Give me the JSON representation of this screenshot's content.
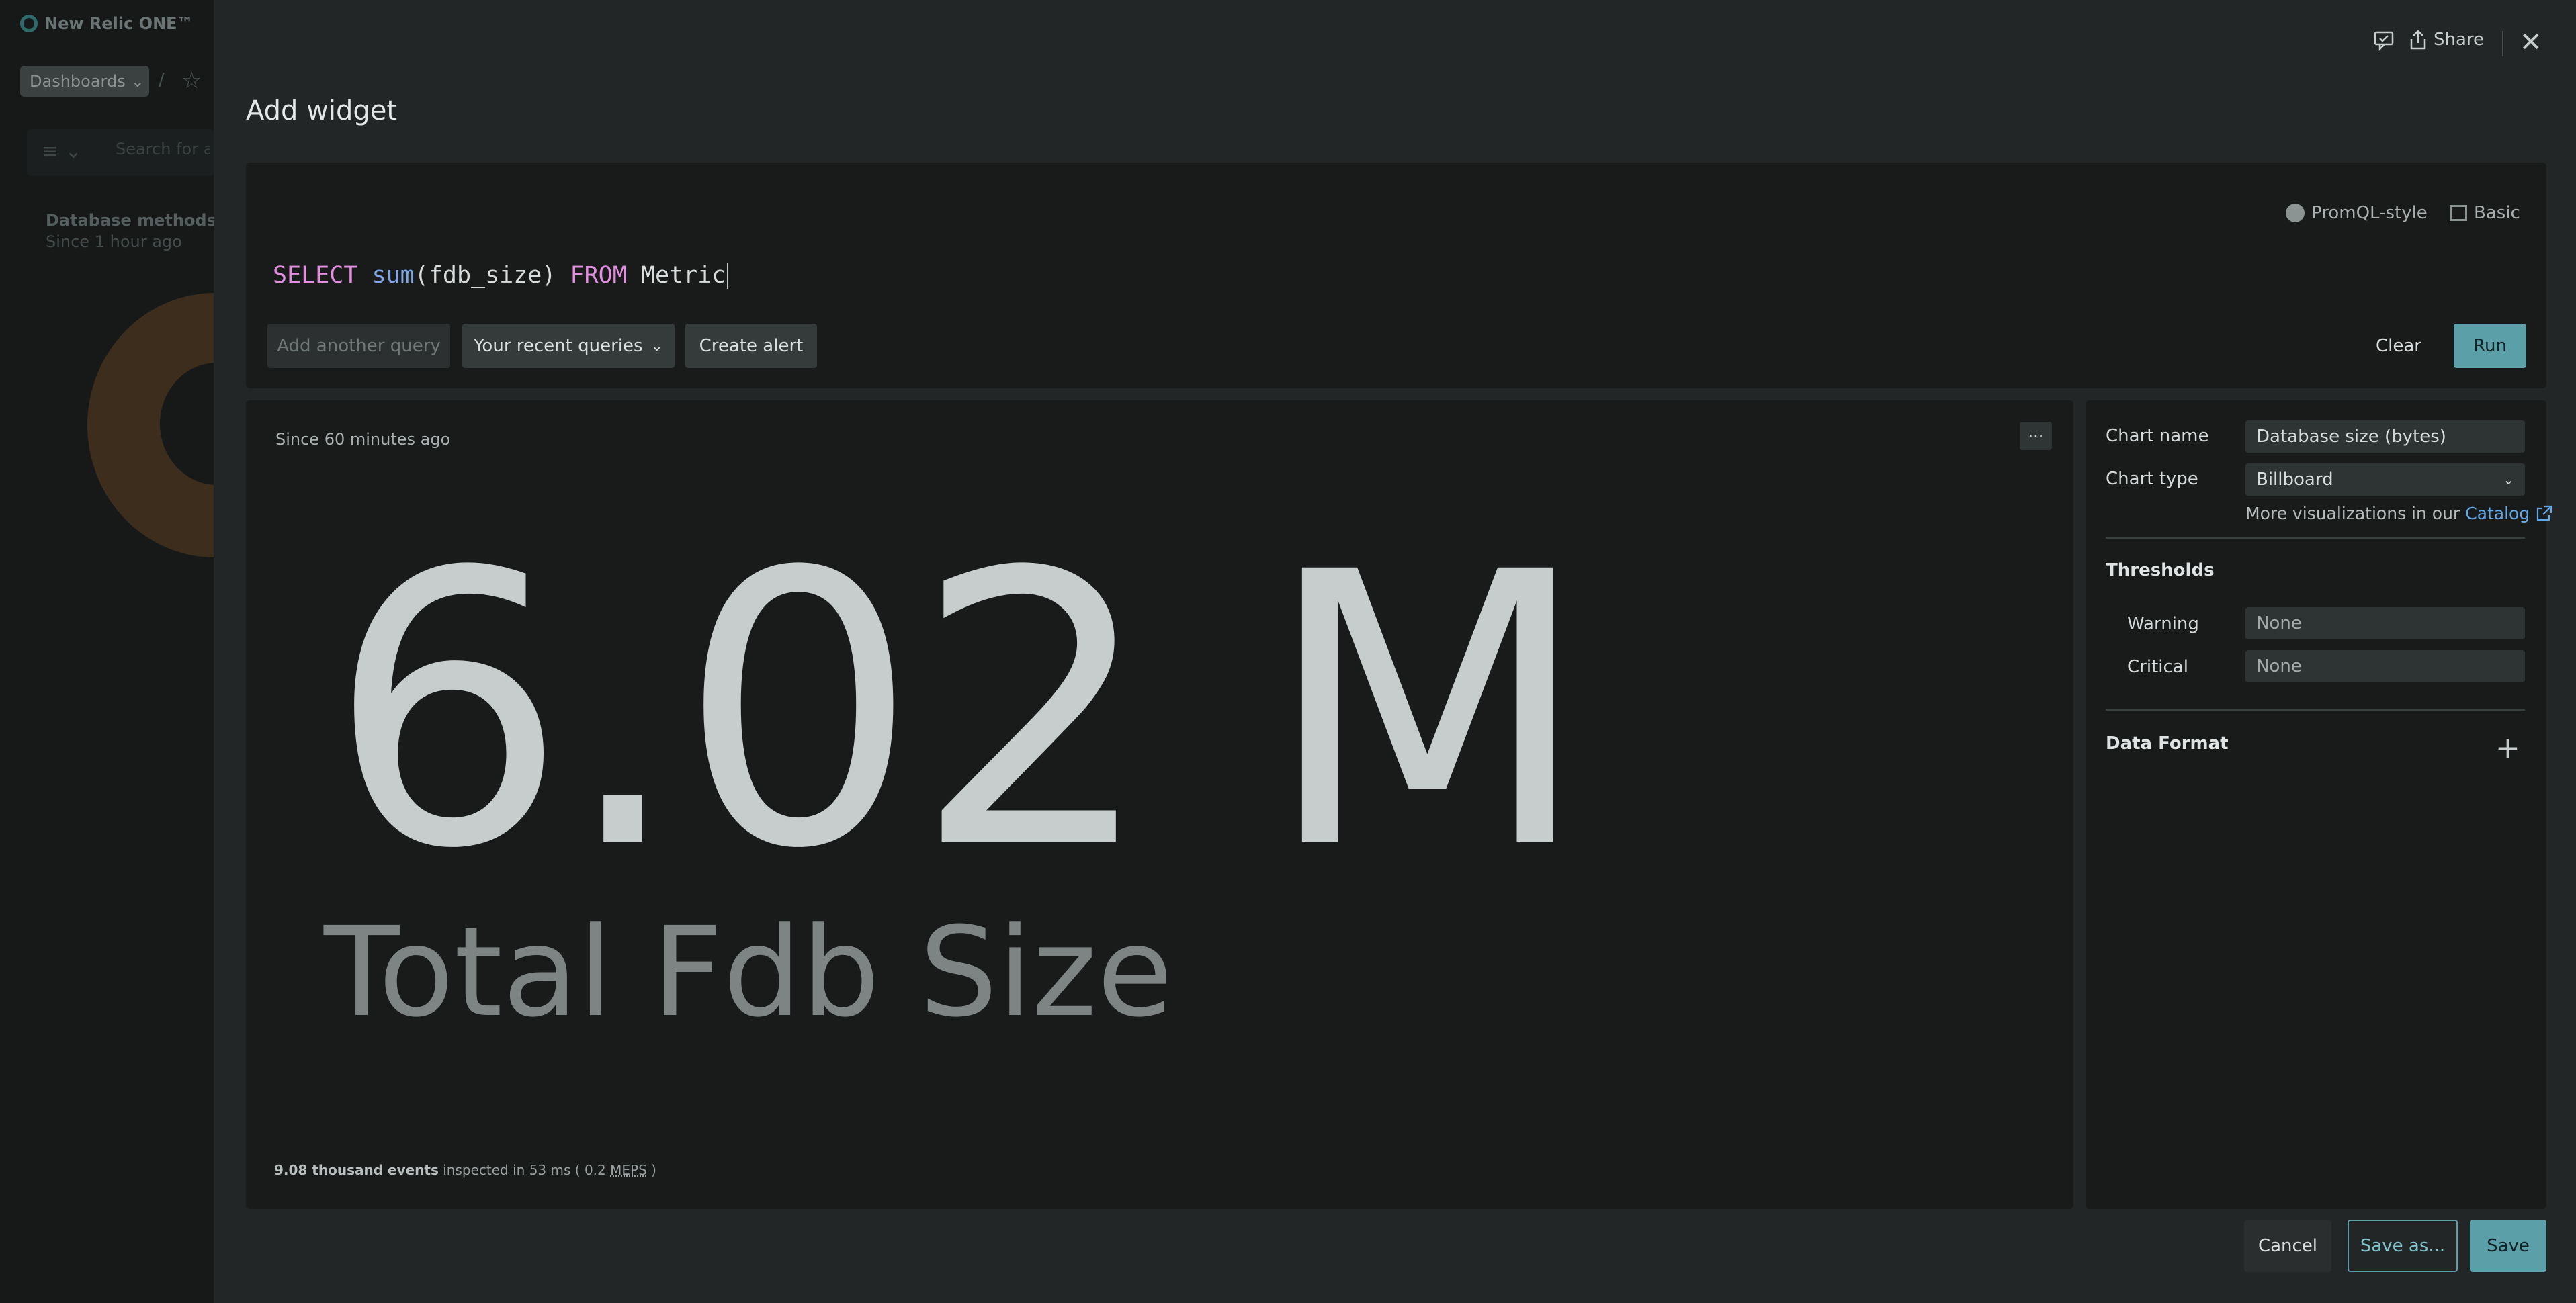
{
  "background": {
    "brand": "New Relic ONE™",
    "dashboards_label": "Dashboards",
    "breadcrumb_sep": "/",
    "search_placeholder": "Search for al",
    "card_title": "Database methods",
    "card_subtitle": "Since 1 hour ago"
  },
  "header": {
    "title": "Add widget",
    "share_label": "Share"
  },
  "query": {
    "modes": [
      "PromQL-style",
      "Basic"
    ],
    "tokens": {
      "select": "SELECT",
      "func": "sum",
      "args": "(fdb_size)",
      "from": "FROM",
      "source": "Metric"
    },
    "add_query_label": "Add another query",
    "recent_label": "Your recent queries",
    "create_alert_label": "Create alert",
    "clear_label": "Clear",
    "run_label": "Run"
  },
  "preview": {
    "since": "Since 60 minutes ago",
    "more_label": "···",
    "value": "6.02 M",
    "label": "Total Fdb Size",
    "footer": {
      "events": "9.08 thousand events",
      "inspected": "inspected in",
      "ms": "53 ms",
      "open": "(",
      "meps_value": "0.2",
      "meps_unit": "MEPS",
      "close": ")"
    }
  },
  "settings": {
    "chart_name_label": "Chart name",
    "chart_name_value": "Database size (bytes)",
    "chart_type_label": "Chart type",
    "chart_type_value": "Billboard",
    "more_viz_text": "More visualizations in our",
    "catalog_link": "Catalog",
    "thresholds_title": "Thresholds",
    "warning_label": "Warning",
    "warning_value": "None",
    "critical_label": "Critical",
    "critical_value": "None",
    "data_format_title": "Data Format"
  },
  "footer_buttons": {
    "cancel": "Cancel",
    "save_as": "Save as...",
    "save": "Save"
  },
  "colors": {
    "accent": "#5b9fa8",
    "keyword": "#e28fe0",
    "function": "#7fa7e8",
    "link": "#63a9e8"
  }
}
